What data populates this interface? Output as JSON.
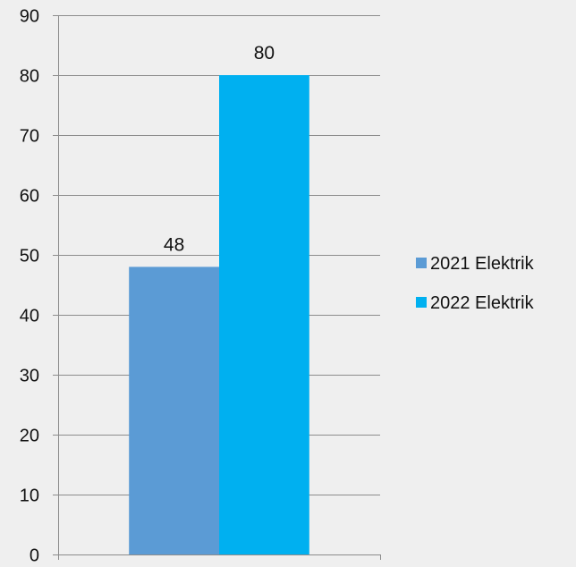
{
  "chart_data": {
    "type": "bar",
    "categories": [
      ""
    ],
    "series": [
      {
        "name": "2021 Elektrik",
        "values": [
          48
        ],
        "color": "#5b9bd5"
      },
      {
        "name": "2022 Elektrik",
        "values": [
          80
        ],
        "color": "#00b0f0"
      }
    ],
    "ylim": [
      0,
      90
    ],
    "yticks": [
      0,
      10,
      20,
      30,
      40,
      50,
      60,
      70,
      80,
      90
    ],
    "data_labels": true,
    "grid": true,
    "legend": "right"
  }
}
